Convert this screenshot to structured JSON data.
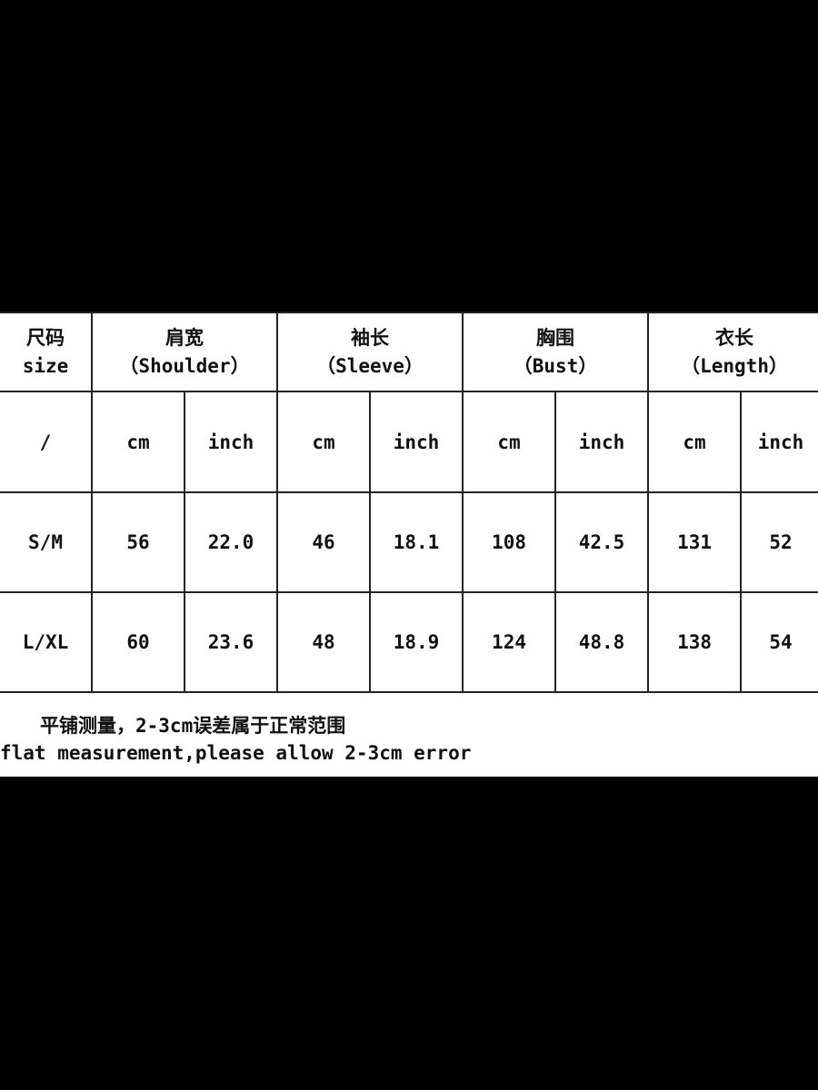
{
  "header": {
    "size": {
      "zh": "尺码",
      "en": "size"
    },
    "groups": [
      {
        "zh": "肩宽",
        "en": "（Shoulder）"
      },
      {
        "zh": "袖长",
        "en": "（Sleeve）"
      },
      {
        "zh": "胸围",
        "en": "（Bust）"
      },
      {
        "zh": "衣长",
        "en": "（Length）"
      }
    ]
  },
  "units": [
    "/",
    "cm",
    "inch",
    "cm",
    "inch",
    "cm",
    "inch",
    "cm",
    "inch"
  ],
  "rows": [
    [
      "S/M",
      "56",
      "22.0",
      "46",
      "18.1",
      "108",
      "42.5",
      "131",
      "52"
    ],
    [
      "L/XL",
      "60",
      "23.6",
      "48",
      "18.9",
      "124",
      "48.8",
      "138",
      "54"
    ]
  ],
  "notes": {
    "zh": "平铺测量，2-3cm误差属于正常范围",
    "en": "flat measurement,please allow 2-3cm error"
  }
}
